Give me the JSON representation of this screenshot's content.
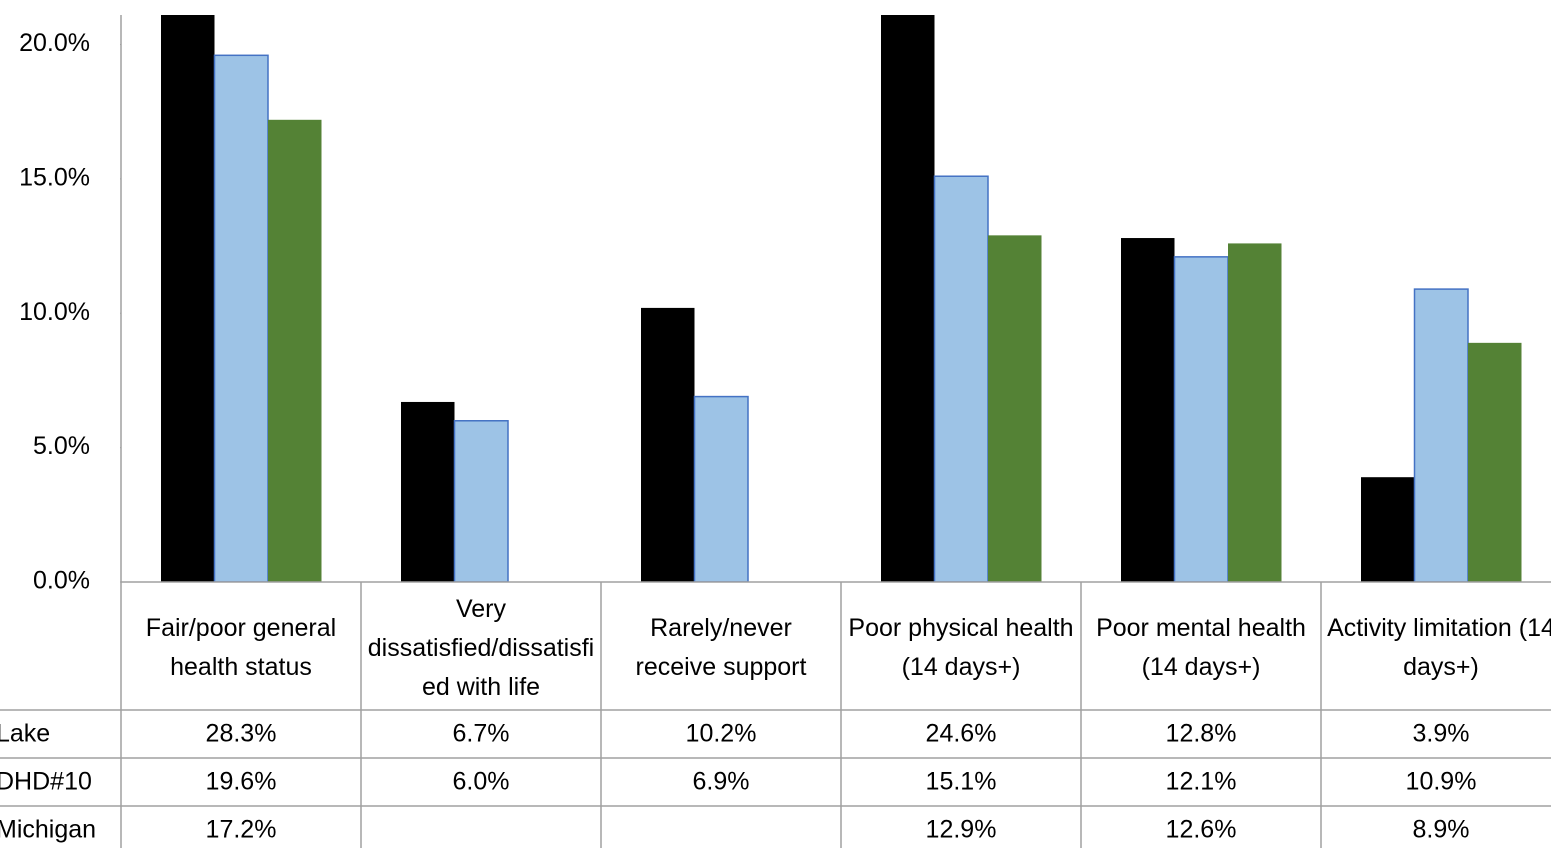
{
  "chart_data": {
    "type": "bar",
    "categories": [
      "Fair/poor general health status",
      "Very dissatisfied/dissatisfied with life",
      "Rarely/never receive support",
      "Poor physical health (14 days+)",
      "Poor mental health (14 days+)",
      "Activity limitation (14 days+)"
    ],
    "series": [
      {
        "name": "Lake",
        "color": "#000000",
        "values": [
          28.3,
          6.7,
          10.2,
          24.6,
          12.8,
          3.9
        ],
        "value_labels": [
          "28.3%",
          "6.7%",
          "10.2%",
          "24.6%",
          "12.8%",
          "3.9%"
        ]
      },
      {
        "name": "DHD#10",
        "color": "#9dc3e6",
        "values": [
          19.6,
          6.0,
          6.9,
          15.1,
          12.1,
          10.9
        ],
        "value_labels": [
          "19.6%",
          "6.0%",
          "6.9%",
          "15.1%",
          "12.1%",
          "10.9%"
        ]
      },
      {
        "name": "Michigan",
        "color": "#548235",
        "values": [
          17.2,
          null,
          null,
          12.9,
          12.6,
          8.9
        ],
        "value_labels": [
          "17.2%",
          null,
          null,
          "12.9%",
          "12.6%",
          "8.9%"
        ]
      }
    ],
    "ylim": [
      0,
      21.1
    ],
    "yticks": [
      {
        "value": 0,
        "label": "0.0%"
      },
      {
        "value": 5,
        "label": "5.0%"
      },
      {
        "value": 10,
        "label": "10.0%"
      },
      {
        "value": 15,
        "label": "15.0%"
      },
      {
        "value": 20,
        "label": "20.0%"
      }
    ]
  }
}
